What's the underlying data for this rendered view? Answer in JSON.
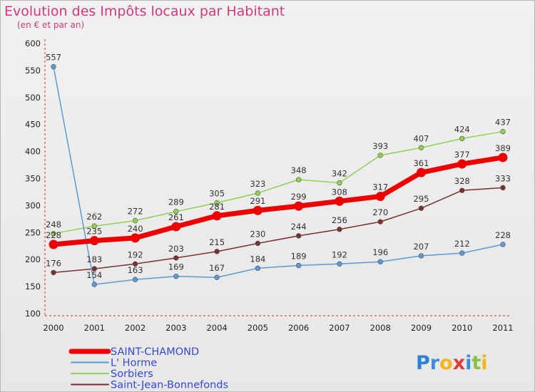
{
  "header": {
    "title": "Evolution des Impôts locaux par Habitant",
    "subtitle": "(en € et par an)"
  },
  "brand": {
    "letters": [
      {
        "ch": "P",
        "color": "#2e7fd6"
      },
      {
        "ch": "r",
        "color": "#3b8ede"
      },
      {
        "ch": "o",
        "color": "#f2b51c"
      },
      {
        "ch": "x",
        "color": "#e23a3a"
      },
      {
        "ch": "i",
        "color": "#3b8ede"
      },
      {
        "ch": "t",
        "color": "#8bc043"
      },
      {
        "ch": "i",
        "color": "#f2b51c"
      }
    ]
  },
  "chart_data": {
    "type": "line",
    "title": "Evolution des Impôts locaux par Habitant",
    "subtitle": "(en € et par an)",
    "xlabel": "",
    "ylabel": "",
    "x": [
      "2000",
      "2001",
      "2002",
      "2003",
      "2004",
      "2005",
      "2006",
      "2007",
      "2008",
      "2009",
      "2010",
      "2011"
    ],
    "ylim": [
      100,
      600
    ],
    "yticks": [
      100,
      150,
      200,
      250,
      300,
      350,
      400,
      450,
      500,
      550,
      600
    ],
    "grid": false,
    "legend": "bottom-left",
    "series": [
      {
        "name": "SAINT-CHAMOND",
        "color": "#ee0000",
        "values": [
          228,
          235,
          240,
          261,
          281,
          291,
          299,
          308,
          317,
          361,
          377,
          389
        ]
      },
      {
        "name": "L' Horme",
        "color": "#5b9bd5",
        "values": [
          557,
          154,
          163,
          169,
          167,
          184,
          189,
          192,
          196,
          207,
          212,
          228
        ]
      },
      {
        "name": "Sorbiers",
        "color": "#92d050",
        "values": [
          248,
          262,
          272,
          289,
          305,
          323,
          348,
          342,
          393,
          407,
          424,
          437
        ]
      },
      {
        "name": "Saint-Jean-Bonnefonds",
        "color": "#7b2f2f",
        "values": [
          176,
          183,
          192,
          203,
          215,
          230,
          244,
          256,
          270,
          295,
          328,
          333
        ]
      }
    ]
  }
}
